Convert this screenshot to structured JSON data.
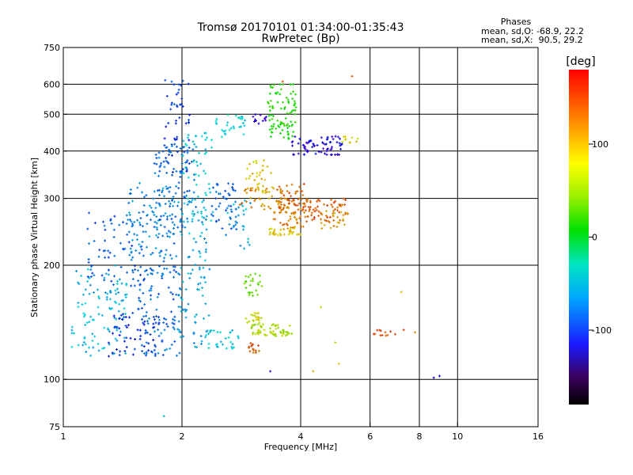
{
  "chart_data": {
    "type": "scatter",
    "title": "Tromsø 20170101 01:34:00-01:35:43",
    "subtitle": "RwPretec (Bp)",
    "xlabel": "Frequency [MHz]",
    "ylabel": "Stationary phase Virtual Height [km]",
    "x_scale": "log",
    "y_scale": "log",
    "xlim": [
      1,
      16
    ],
    "ylim": [
      75,
      750
    ],
    "x_ticks": [
      1,
      2,
      4,
      6,
      8,
      10,
      16
    ],
    "y_ticks": [
      75,
      100,
      200,
      300,
      400,
      500,
      600,
      750
    ],
    "x_grid": [
      2,
      4,
      6,
      8,
      10
    ],
    "y_grid": [
      100,
      200,
      300,
      400,
      500,
      600
    ],
    "stats": {
      "header": "Phases",
      "line_o": "mean, sd,O: -68.9, 22.2",
      "line_x": "mean, sd,X:  90.5, 29.2"
    },
    "colorbar": {
      "label": "[deg]",
      "range": [
        -180,
        180
      ],
      "ticks": [
        100,
        0,
        -100
      ]
    },
    "clusters": [
      {
        "f": [
          1.05,
          1.45
        ],
        "h": [
          115,
          200
        ],
        "phase": -55,
        "n": 110
      },
      {
        "f": [
          1.15,
          1.6
        ],
        "h": [
          175,
          280
        ],
        "phase": -85,
        "n": 70
      },
      {
        "f": [
          1.3,
          1.75
        ],
        "h": [
          115,
          150
        ],
        "phase": -105,
        "n": 60
      },
      {
        "f": [
          1.45,
          1.95
        ],
        "h": [
          190,
          330
        ],
        "phase": -70,
        "n": 110
      },
      {
        "f": [
          1.55,
          2.0
        ],
        "h": [
          115,
          200
        ],
        "phase": -80,
        "n": 100
      },
      {
        "f": [
          1.7,
          2.15
        ],
        "h": [
          250,
          420
        ],
        "phase": -80,
        "n": 100
      },
      {
        "f": [
          1.8,
          2.1
        ],
        "h": [
          350,
          620
        ],
        "phase": -95,
        "n": 55
      },
      {
        "f": [
          1.95,
          2.35
        ],
        "h": [
          120,
          300
        ],
        "phase": -60,
        "n": 90
      },
      {
        "f": [
          2.0,
          2.4
        ],
        "h": [
          260,
          450
        ],
        "phase": -45,
        "n": 60
      },
      {
        "f": [
          2.3,
          2.8
        ],
        "h": [
          120,
          135
        ],
        "phase": -50,
        "n": 30
      },
      {
        "f": [
          2.35,
          2.75
        ],
        "h": [
          240,
          330
        ],
        "phase": -85,
        "n": 45
      },
      {
        "f": [
          2.4,
          2.9
        ],
        "h": [
          430,
          500
        ],
        "phase": -40,
        "n": 30
      },
      {
        "f": [
          2.6,
          3.0
        ],
        "h": [
          220,
          300
        ],
        "phase": -60,
        "n": 25
      },
      {
        "f": [
          2.8,
          3.6
        ],
        "h": [
          280,
          320
        ],
        "phase": 135,
        "n": 40
      },
      {
        "f": [
          2.9,
          3.4
        ],
        "h": [
          310,
          380
        ],
        "phase": 115,
        "n": 35
      },
      {
        "f": [
          2.85,
          3.2
        ],
        "h": [
          165,
          190
        ],
        "phase": 65,
        "n": 25
      },
      {
        "f": [
          2.9,
          3.2
        ],
        "h": [
          140,
          150
        ],
        "phase": 100,
        "n": 20
      },
      {
        "f": [
          3.0,
          3.8
        ],
        "h": [
          130,
          140
        ],
        "phase": 90,
        "n": 60
      },
      {
        "f": [
          2.95,
          3.15
        ],
        "h": [
          115,
          125
        ],
        "phase": 150,
        "n": 15
      },
      {
        "f": [
          3.3,
          3.9
        ],
        "h": [
          430,
          600
        ],
        "phase": 40,
        "n": 90
      },
      {
        "f": [
          3.4,
          4.1
        ],
        "h": [
          250,
          300
        ],
        "phase": 135,
        "n": 60
      },
      {
        "f": [
          3.5,
          4.2
        ],
        "h": [
          280,
          330
        ],
        "phase": 150,
        "n": 40
      },
      {
        "f": [
          3.3,
          4.0
        ],
        "h": [
          240,
          250
        ],
        "phase": 115,
        "n": 30
      },
      {
        "f": [
          3.8,
          5.1
        ],
        "h": [
          390,
          440
        ],
        "phase": -125,
        "n": 70
      },
      {
        "f": [
          4.1,
          5.2
        ],
        "h": [
          260,
          300
        ],
        "phase": 150,
        "n": 60
      },
      {
        "f": [
          4.5,
          5.4
        ],
        "h": [
          250,
          280
        ],
        "phase": 130,
        "n": 25
      },
      {
        "f": [
          5.1,
          5.6
        ],
        "h": [
          420,
          440
        ],
        "phase": 110,
        "n": 10
      },
      {
        "f": [
          3.0,
          3.3
        ],
        "h": [
          470,
          500
        ],
        "phase": -130,
        "n": 12
      },
      {
        "f": [
          6.1,
          7.0
        ],
        "h": [
          130,
          135
        ],
        "phase": 155,
        "n": 12
      }
    ],
    "isolated": [
      {
        "f": 1.8,
        "h": 80,
        "phase": -55
      },
      {
        "f": 3.35,
        "h": 105,
        "phase": -130
      },
      {
        "f": 4.3,
        "h": 105,
        "phase": 120
      },
      {
        "f": 8.7,
        "h": 101,
        "phase": -120
      },
      {
        "f": 9.0,
        "h": 102,
        "phase": -115
      },
      {
        "f": 7.3,
        "h": 135,
        "phase": 160
      },
      {
        "f": 7.8,
        "h": 133,
        "phase": 130
      },
      {
        "f": 7.2,
        "h": 170,
        "phase": 115
      },
      {
        "f": 5.0,
        "h": 110,
        "phase": 110
      },
      {
        "f": 4.9,
        "h": 125,
        "phase": 90
      },
      {
        "f": 3.6,
        "h": 610,
        "phase": 160
      },
      {
        "f": 5.4,
        "h": 630,
        "phase": 150
      },
      {
        "f": 4.5,
        "h": 155,
        "phase": 100
      }
    ]
  }
}
